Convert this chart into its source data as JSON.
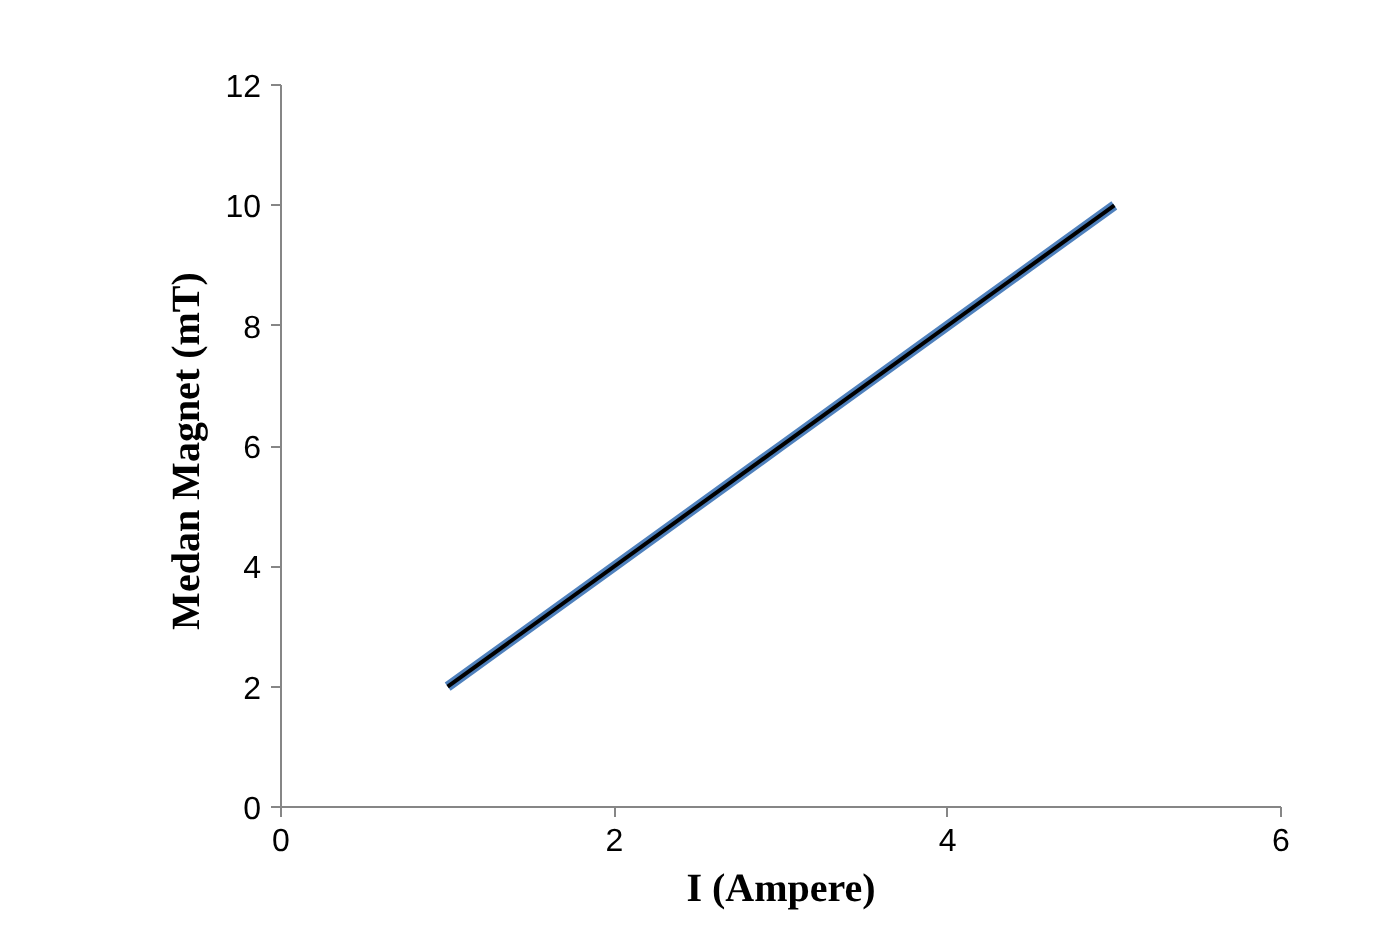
{
  "chart_data": {
    "type": "line",
    "xlabel": "I (Ampere)",
    "ylabel": "Medan Magnet  (mT)",
    "x": [
      1,
      2,
      3,
      4,
      5
    ],
    "series": [
      {
        "color": "#4f81bd",
        "values": [
          2,
          4,
          6,
          8,
          10
        ]
      },
      {
        "type": "line",
        "color": "#000000",
        "x": [
          1,
          5
        ],
        "values": [
          2,
          10
        ]
      }
    ],
    "xlim": [
      0,
      6
    ],
    "ylim": [
      0,
      12
    ],
    "xticks": [
      0,
      2,
      4,
      6
    ],
    "yticks": [
      0,
      2,
      4,
      6,
      8,
      10,
      12
    ],
    "grid": false,
    "marker": "none",
    "line_style": "solid"
  }
}
